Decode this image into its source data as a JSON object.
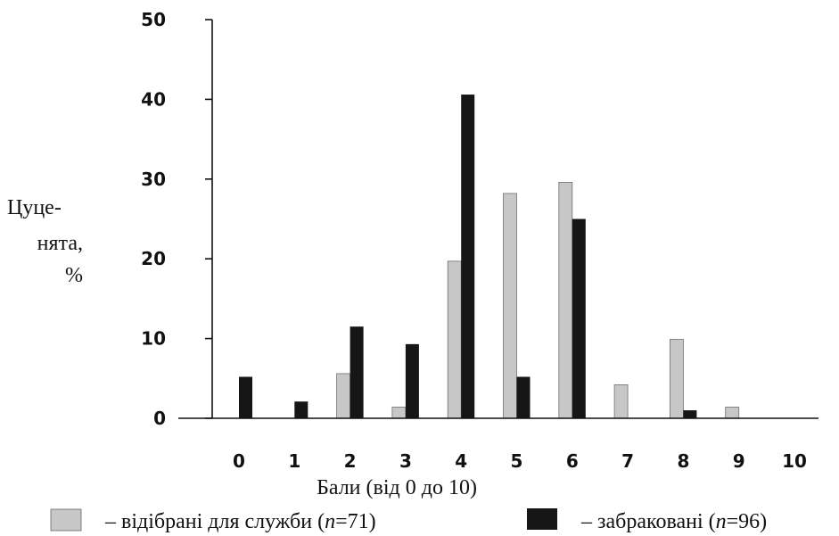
{
  "chart_data": {
    "type": "bar",
    "categories": [
      "0",
      "1",
      "2",
      "3",
      "4",
      "5",
      "6",
      "7",
      "8",
      "9",
      "10"
    ],
    "series": [
      {
        "name": "відібрані для служби",
        "n_label": "n",
        "n_value": "71",
        "color": "#c7c7c7",
        "values": [
          0,
          0,
          5.6,
          1.4,
          19.7,
          28.2,
          29.6,
          4.2,
          9.9,
          1.4,
          0
        ]
      },
      {
        "name": "забраковані",
        "n_label": "n",
        "n_value": "96",
        "color": "#161616",
        "values": [
          5.2,
          2.1,
          11.5,
          9.3,
          40.6,
          5.2,
          25.0,
          0,
          1.0,
          0,
          0
        ]
      }
    ],
    "ylim": [
      0,
      50
    ],
    "yticks": [
      "0",
      "10",
      "20",
      "30",
      "40",
      "50"
    ],
    "ylabel_lines": [
      "Цуце-",
      "нята,",
      "%"
    ],
    "xlabel": "Бали (від 0 до 10)",
    "legend": {
      "placement": "bottom",
      "dash": "–",
      "open_paren": "(",
      "eq_close": "=",
      "close_paren": ")"
    }
  }
}
